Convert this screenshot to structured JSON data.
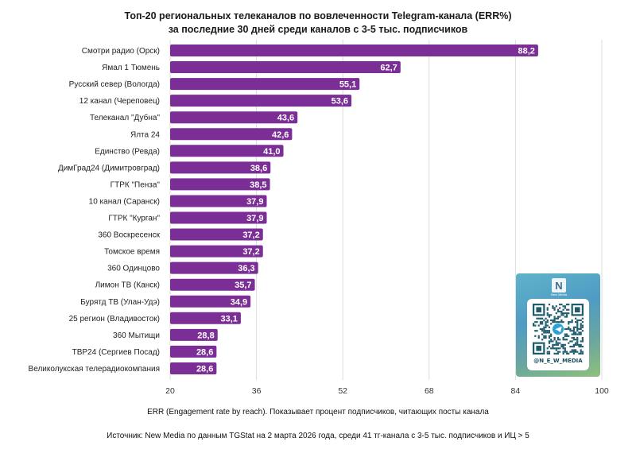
{
  "header": {
    "title_line1": "Топ-20 региональных телеканалов по вовлеченности Telegram-канала (ERR%)",
    "title_line2": "за последние 30 дней среди каналов с 3-5 тыс. подписчиков"
  },
  "chart_data": {
    "type": "bar",
    "orientation": "horizontal",
    "categories": [
      "Смотри радио (Орск)",
      "Ямал 1 Тюмень",
      "Русский север (Вологда)",
      "12 канал (Череповец)",
      "Телеканал \"Дубна\"",
      "Ялта 24",
      "Единство (Ревда)",
      "ДимГрад24 (Димитровград)",
      "ГТРК \"Пенза\"",
      "10 канал (Саранск)",
      "ГТРК \"Курган\"",
      "360 Воскресенск",
      "Томское время",
      "360 Одинцово",
      "Лимон ТВ (Канск)",
      "Бурятд ТВ (Улан-Удэ)",
      "25 регион (Владивосток)",
      "360 Мытищи",
      "ТВР24 (Сергиев Посад)",
      "Великолукская телерадиокомпания"
    ],
    "values": [
      88.2,
      62.7,
      55.1,
      53.6,
      43.6,
      42.6,
      41.0,
      38.6,
      38.5,
      37.9,
      37.9,
      37.2,
      37.2,
      36.3,
      35.7,
      34.9,
      33.1,
      28.8,
      28.6,
      28.6
    ],
    "value_labels": [
      "88,2",
      "62,7",
      "55,1",
      "53,6",
      "43,6",
      "42,6",
      "41,0",
      "38,6",
      "38,5",
      "37,9",
      "37,9",
      "37,2",
      "37,2",
      "36,3",
      "35,7",
      "34,9",
      "33,1",
      "28,8",
      "28,6",
      "28,6"
    ],
    "xlim": [
      20,
      100
    ],
    "xticks": [
      20,
      36,
      52,
      68,
      84,
      100
    ],
    "grid": true,
    "bar_color": "#7b2f96",
    "grid_color": "#dddddd",
    "xlabel": "",
    "ylabel": ""
  },
  "notes": {
    "definition": "ERR (Engagement rate by reach). Показывает процент подписчиков, читающих посты канала",
    "source": "Источник: New Media по данным TGStat на 2 марта 2026 года, среди 41 тг-канала с 3-5 тыс. подписчиков и ИЦ > 5"
  },
  "qr_card": {
    "logo_letter": "N",
    "logo_subtext": "New Media",
    "handle": "@N_E_W_MEDIA",
    "icon": "telegram-qr-icon"
  }
}
